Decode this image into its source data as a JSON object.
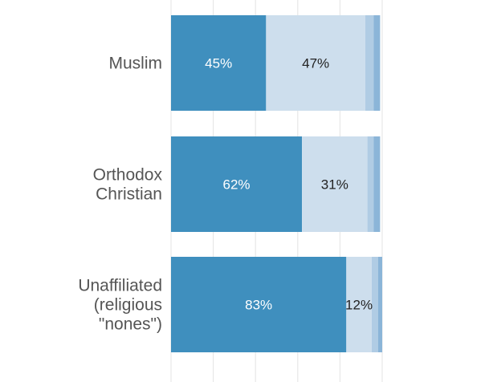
{
  "chart_data": {
    "type": "bar",
    "orientation": "horizontal",
    "stacked": true,
    "categories": [
      [
        "Muslim"
      ],
      [
        "Orthodox",
        "Christian"
      ],
      [
        "Unaffiliated",
        "(religious",
        "\"nones\")"
      ]
    ],
    "series": [
      {
        "values": [
          45,
          62,
          83
        ],
        "labels": [
          "45%",
          "62%",
          "83%"
        ],
        "color": "#3f8fbe",
        "label_color": "#ffffff"
      },
      {
        "values": [
          47,
          31,
          12
        ],
        "labels": [
          "47%",
          "31%",
          "12%"
        ],
        "color": "#cddeed",
        "label_color": "#222222"
      },
      {
        "values": [
          4,
          3,
          3
        ],
        "labels": [
          "",
          "",
          ""
        ],
        "color": "#b0cce4",
        "label_color": "#222222"
      },
      {
        "values": [
          3,
          3,
          2
        ],
        "labels": [
          "",
          "",
          ""
        ],
        "color": "#8bb5d8",
        "label_color": "#222222"
      }
    ],
    "xlim": [
      0,
      100
    ],
    "grid": true,
    "grid_color": "#e3e3e3"
  }
}
